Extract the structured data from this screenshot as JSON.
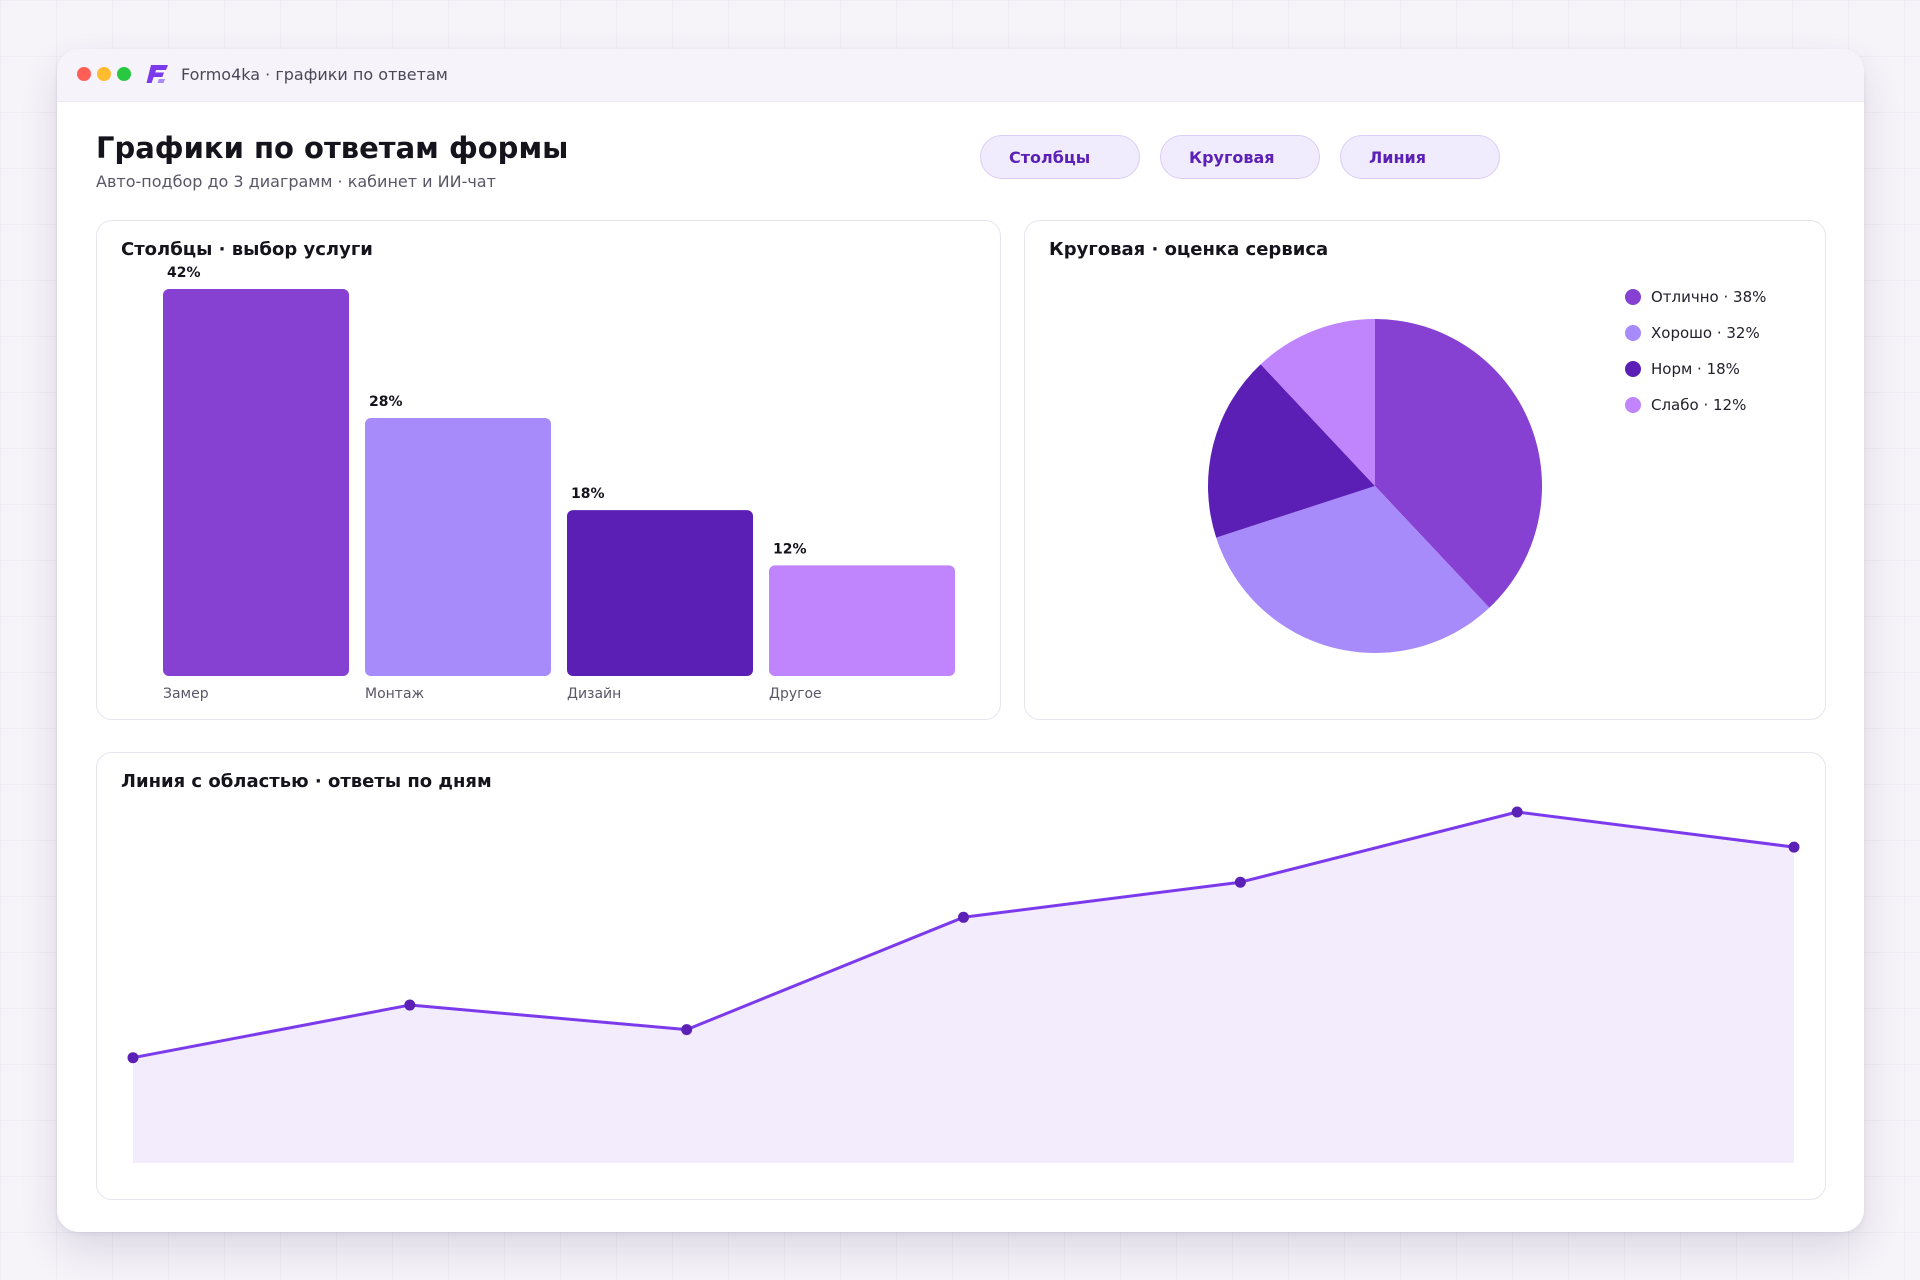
{
  "window": {
    "title": "Formo4ka · графики по ответам"
  },
  "header": {
    "title": "Графики по ответам формы",
    "subtitle": "Авто-подбор до 3 диаграмм · кабинет и ИИ-чат",
    "chips": [
      {
        "label": "Столбцы"
      },
      {
        "label": "Круговая"
      },
      {
        "label": "Линия"
      }
    ]
  },
  "colors": {
    "accent": "#5b21b6",
    "bar_1": "#8640d2",
    "bar_2": "#a78bfa",
    "bar_3": "#5b1fb5",
    "bar_4": "#c084fc",
    "line": "#7c3aed",
    "area": "#f2ecfd"
  },
  "chart_data": [
    {
      "type": "bar",
      "title": "Столбцы · выбор услуги",
      "categories": [
        "Замер",
        "Монтаж",
        "Дизайн",
        "Другое"
      ],
      "values": [
        42,
        28,
        18,
        12
      ],
      "value_labels": [
        "42%",
        "28%",
        "18%",
        "12%"
      ],
      "ylim": [
        0,
        42
      ],
      "grid": false
    },
    {
      "type": "pie",
      "title": "Круговая · оценка сервиса",
      "labels": [
        "Отлично",
        "Хорошо",
        "Норм",
        "Слабо"
      ],
      "values": [
        38,
        32,
        18,
        12
      ],
      "legend_labels": [
        "Отлично · 38%",
        "Хорошо · 32%",
        "Норм · 18%",
        "Слабо · 12%"
      ],
      "legend": "right"
    },
    {
      "type": "area",
      "title": "Линия с областью · ответы по дням",
      "x": [
        1,
        2,
        3,
        4,
        5,
        6,
        7
      ],
      "values": [
        30,
        45,
        38,
        70,
        80,
        100,
        90
      ],
      "ylim": [
        0,
        100
      ],
      "grid": false
    }
  ]
}
